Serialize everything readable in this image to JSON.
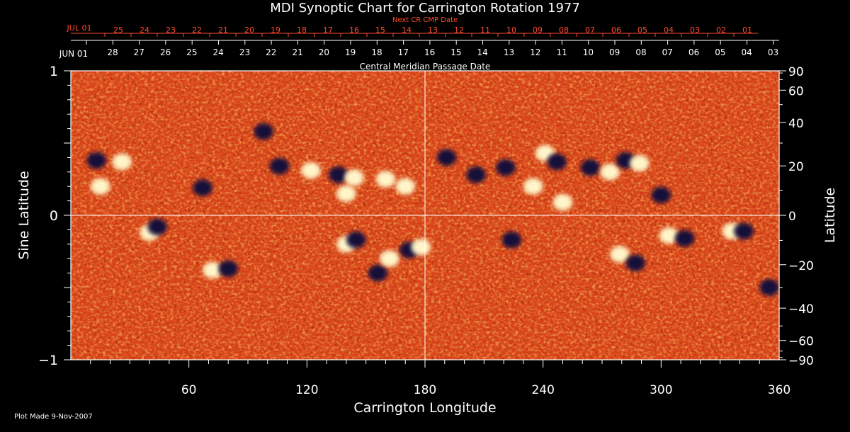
{
  "chart_data": {
    "type": "heatmap",
    "title": "MDI Synoptic Chart for Carrington Rotation 1977",
    "xlabel": "Carrington Longitude",
    "ylabel_left": "Sine Latitude",
    "ylabel_right": "Latitude",
    "xlim": [
      0,
      360
    ],
    "ylim": [
      -1,
      1
    ],
    "x_ticks": [
      60,
      120,
      180,
      240,
      300,
      360
    ],
    "y_ticks_left": [
      {
        "value": 1,
        "label": "1"
      },
      {
        "value": 0,
        "label": "0"
      },
      {
        "value": -1,
        "label": "−1"
      }
    ],
    "y_ticks_right": [
      90,
      60,
      40,
      20,
      0,
      -20,
      -40,
      -60,
      -90
    ],
    "top_axis": {
      "label": "Central Meridian Passage Date",
      "start_label": "JUN 01",
      "dates": [
        "28",
        "27",
        "26",
        "25",
        "24",
        "23",
        "22",
        "21",
        "20",
        "19",
        "18",
        "17",
        "16",
        "15",
        "14",
        "13",
        "12",
        "11",
        "10",
        "09",
        "08",
        "07",
        "06",
        "05",
        "04",
        "03"
      ]
    },
    "next_cr_axis": {
      "label": "Next CR CMP Date",
      "start_label": "JUL 01",
      "dates": [
        "25",
        "24",
        "23",
        "22",
        "21",
        "20",
        "19",
        "18",
        "17",
        "16",
        "15",
        "14",
        "13",
        "12",
        "11",
        "10",
        "09",
        "08",
        "07",
        "06",
        "05",
        "04",
        "03",
        "02",
        "01"
      ]
    },
    "reference_lines": {
      "longitude": 180,
      "sine_latitude": 0
    },
    "active_regions": [
      {
        "lon": 13,
        "sinlat": 0.38,
        "polarity": "negative"
      },
      {
        "lon": 26,
        "sinlat": 0.37,
        "polarity": "positive"
      },
      {
        "lon": 15,
        "sinlat": 0.2,
        "polarity": "positive"
      },
      {
        "lon": 67,
        "sinlat": 0.19,
        "polarity": "negative"
      },
      {
        "lon": 106,
        "sinlat": 0.34,
        "polarity": "negative"
      },
      {
        "lon": 122,
        "sinlat": 0.31,
        "polarity": "positive"
      },
      {
        "lon": 136,
        "sinlat": 0.28,
        "polarity": "negative"
      },
      {
        "lon": 144,
        "sinlat": 0.26,
        "polarity": "positive"
      },
      {
        "lon": 140,
        "sinlat": 0.15,
        "polarity": "positive"
      },
      {
        "lon": 98,
        "sinlat": 0.58,
        "polarity": "negative"
      },
      {
        "lon": 170,
        "sinlat": 0.2,
        "polarity": "positive"
      },
      {
        "lon": 160,
        "sinlat": 0.25,
        "polarity": "positive"
      },
      {
        "lon": 191,
        "sinlat": 0.4,
        "polarity": "negative"
      },
      {
        "lon": 206,
        "sinlat": 0.28,
        "polarity": "negative"
      },
      {
        "lon": 221,
        "sinlat": 0.33,
        "polarity": "negative"
      },
      {
        "lon": 241,
        "sinlat": 0.43,
        "polarity": "positive"
      },
      {
        "lon": 247,
        "sinlat": 0.37,
        "polarity": "negative"
      },
      {
        "lon": 235,
        "sinlat": 0.2,
        "polarity": "positive"
      },
      {
        "lon": 264,
        "sinlat": 0.33,
        "polarity": "negative"
      },
      {
        "lon": 274,
        "sinlat": 0.3,
        "polarity": "positive"
      },
      {
        "lon": 282,
        "sinlat": 0.38,
        "polarity": "negative"
      },
      {
        "lon": 289,
        "sinlat": 0.36,
        "polarity": "positive"
      },
      {
        "lon": 250,
        "sinlat": 0.09,
        "polarity": "positive"
      },
      {
        "lon": 300,
        "sinlat": 0.14,
        "polarity": "negative"
      },
      {
        "lon": 40,
        "sinlat": -0.12,
        "polarity": "positive"
      },
      {
        "lon": 44,
        "sinlat": -0.08,
        "polarity": "negative"
      },
      {
        "lon": 72,
        "sinlat": -0.38,
        "polarity": "positive"
      },
      {
        "lon": 80,
        "sinlat": -0.37,
        "polarity": "negative"
      },
      {
        "lon": 140,
        "sinlat": -0.2,
        "polarity": "positive"
      },
      {
        "lon": 145,
        "sinlat": -0.17,
        "polarity": "negative"
      },
      {
        "lon": 156,
        "sinlat": -0.4,
        "polarity": "negative"
      },
      {
        "lon": 162,
        "sinlat": -0.3,
        "polarity": "positive"
      },
      {
        "lon": 172,
        "sinlat": -0.24,
        "polarity": "negative"
      },
      {
        "lon": 178,
        "sinlat": -0.22,
        "polarity": "positive"
      },
      {
        "lon": 224,
        "sinlat": -0.17,
        "polarity": "negative"
      },
      {
        "lon": 279,
        "sinlat": -0.27,
        "polarity": "positive"
      },
      {
        "lon": 287,
        "sinlat": -0.33,
        "polarity": "negative"
      },
      {
        "lon": 304,
        "sinlat": -0.14,
        "polarity": "positive"
      },
      {
        "lon": 312,
        "sinlat": -0.16,
        "polarity": "negative"
      },
      {
        "lon": 336,
        "sinlat": -0.11,
        "polarity": "positive"
      },
      {
        "lon": 342,
        "sinlat": -0.11,
        "polarity": "negative"
      },
      {
        "lon": 355,
        "sinlat": -0.5,
        "polarity": "negative"
      }
    ],
    "colors": {
      "background": "#000000",
      "field_base": "#e0481a",
      "positive": "#fff5c8",
      "negative": "#14103a",
      "accent_red": "#ff4a2a"
    }
  },
  "footer": {
    "plot_made": "Plot Made  9-Nov-2007"
  }
}
